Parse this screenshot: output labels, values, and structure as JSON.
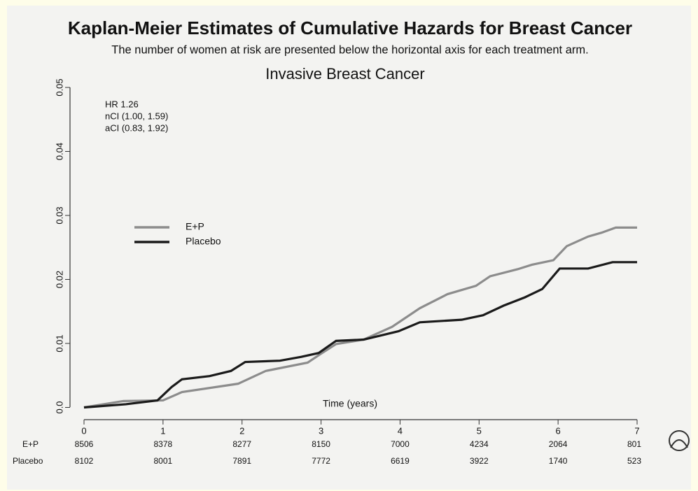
{
  "chart_data": {
    "type": "line",
    "title": "Kaplan-Meier Estimates of Cumulative Hazards for Breast Cancer",
    "subtitle": "The number of women at risk are presented below the horizontal axis for each treatment arm.",
    "plot_title": "Invasive Breast Cancer",
    "xlabel": "Time (years)",
    "annotations": [
      "HR  1.26",
      "nCI  (1.00, 1.59)",
      "aCI  (0.83, 1.92)"
    ],
    "xlim": [
      0,
      7
    ],
    "xticks": [
      0,
      1,
      2,
      3,
      4,
      5,
      6,
      7
    ],
    "ylim": [
      0,
      0.05
    ],
    "yticks": [
      {
        "value": 0,
        "label": "0.0"
      },
      0.01,
      0.02,
      0.03,
      0.04,
      0.05
    ],
    "series": [
      {
        "name": "E+P",
        "color": "#8c8c8c",
        "x": [
          0,
          0.5,
          1.0,
          1.24,
          1.95,
          2.3,
          2.83,
          3.0,
          3.19,
          3.54,
          3.9,
          4.25,
          4.6,
          4.96,
          5.14,
          5.49,
          5.67,
          5.94,
          6.11,
          6.38,
          6.55,
          6.73,
          7.0
        ],
        "values": [
          0,
          0.001,
          0.0011,
          0.0024,
          0.0037,
          0.0057,
          0.007,
          0.0084,
          0.0099,
          0.0106,
          0.0126,
          0.0155,
          0.0177,
          0.019,
          0.0205,
          0.0216,
          0.0223,
          0.023,
          0.0252,
          0.0267,
          0.0273,
          0.0281,
          0.0281
        ]
      },
      {
        "name": "Placebo",
        "color": "#1a1a1a",
        "x": [
          0,
          0.53,
          0.93,
          1.11,
          1.24,
          1.59,
          1.86,
          2.04,
          2.48,
          2.75,
          2.97,
          3.19,
          3.54,
          3.98,
          4.25,
          4.78,
          5.05,
          5.31,
          5.58,
          5.8,
          6.02,
          6.38,
          6.69,
          7.0
        ],
        "values": [
          0,
          0.0005,
          0.0011,
          0.0032,
          0.0044,
          0.0049,
          0.0057,
          0.0071,
          0.0073,
          0.0079,
          0.0085,
          0.0104,
          0.0106,
          0.0119,
          0.0133,
          0.0137,
          0.0144,
          0.0159,
          0.0172,
          0.0185,
          0.0217,
          0.0217,
          0.0227,
          0.0227
        ]
      }
    ],
    "at_risk": [
      {
        "name": "E+P",
        "values": [
          8506,
          8378,
          8277,
          8150,
          7000,
          4234,
          2064,
          801
        ]
      },
      {
        "name": "Placebo",
        "values": [
          8102,
          8001,
          7891,
          7772,
          6619,
          3922,
          1740,
          523
        ]
      }
    ]
  }
}
